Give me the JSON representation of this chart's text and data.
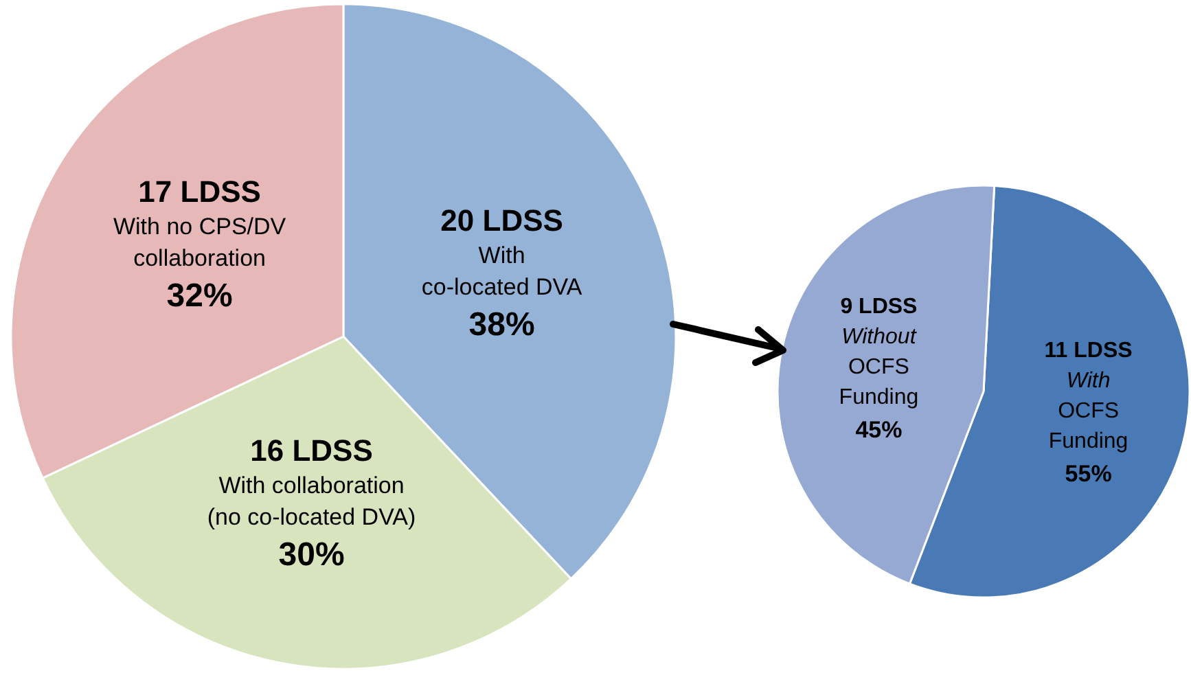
{
  "chart_data": [
    {
      "type": "pie",
      "categories": [
        "20 LDSS\nWith\nco-located DVA",
        "16 LDSS\nWith collaboration\n(no co-located DVA)",
        "17 LDSS\nWith no CPS/DV\ncollaboration"
      ],
      "values": [
        38,
        30,
        32
      ],
      "value_labels": [
        "38%",
        "30%",
        "32%"
      ],
      "colors": [
        "#95b3d7",
        "#d7e4bd",
        "#e6b9b8"
      ]
    },
    {
      "type": "pie",
      "categories": [
        "11 LDSS\nWith\nOCFS\nFunding",
        "9 LDSS\nWithout\nOCFS\nFunding"
      ],
      "values": [
        55,
        45
      ],
      "value_labels": [
        "55%",
        "45%"
      ],
      "colors": [
        "#4a7ab5",
        "#95a9d2"
      ]
    }
  ]
}
